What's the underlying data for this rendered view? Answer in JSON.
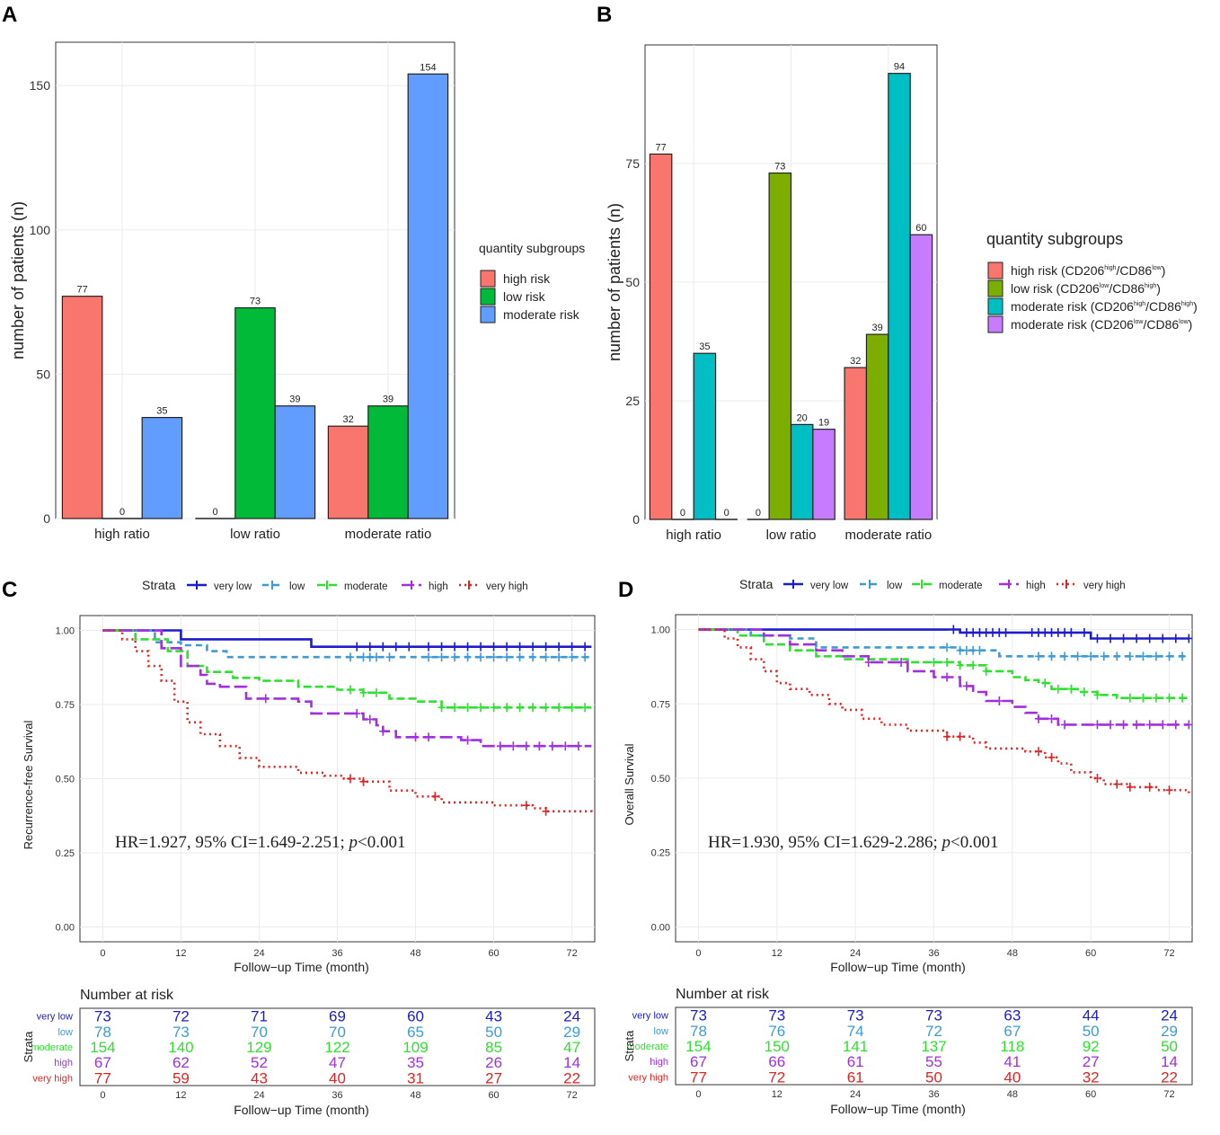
{
  "panels": {
    "a": "A",
    "b": "B",
    "c": "C",
    "d": "D"
  },
  "chart_data": [
    {
      "type": "bar",
      "panel": "A",
      "categories": [
        "high ratio",
        "low ratio",
        "moderate ratio"
      ],
      "series": [
        {
          "name": "high risk",
          "color": "#F8766D",
          "values": [
            77,
            0,
            32
          ]
        },
        {
          "name": "low risk",
          "color": "#00BA38",
          "values": [
            0,
            73,
            39
          ]
        },
        {
          "name": "moderate risk",
          "color": "#619CFF",
          "values": [
            35,
            39,
            154
          ]
        }
      ],
      "ylabel": "number of patients (n)",
      "yticks": [
        0,
        50,
        100,
        150
      ],
      "ylim": [
        0,
        165
      ],
      "legend_title": "quantity subgroups"
    },
    {
      "type": "bar",
      "panel": "B",
      "categories": [
        "high ratio",
        "low ratio",
        "moderate ratio"
      ],
      "series": [
        {
          "name": "high risk (CD206",
          "sup1": "high",
          "mid": "/CD86",
          "sup2": "low",
          "end": ")",
          "color": "#F8766D",
          "values": [
            77,
            0,
            32
          ]
        },
        {
          "name": "low risk (CD206",
          "sup1": "low",
          "mid": "/CD86",
          "sup2": "high",
          "end": ")",
          "color": "#7CAE00",
          "values": [
            0,
            73,
            39
          ]
        },
        {
          "name": "moderate risk (CD206",
          "sup1": "high",
          "mid": "/CD86",
          "sup2": "high",
          "end": ")",
          "color": "#00BFC4",
          "values": [
            35,
            20,
            94
          ]
        },
        {
          "name": "moderate risk (CD206",
          "sup1": "low",
          "mid": "/CD86",
          "sup2": "low",
          "end": ")",
          "color": "#C77CFF",
          "values": [
            0,
            19,
            60
          ]
        }
      ],
      "ylabel": "number of patients (n)",
      "yticks": [
        0,
        25,
        50,
        75
      ],
      "ylim": [
        0,
        100
      ],
      "legend_title": "quantity subgroups"
    },
    {
      "type": "line",
      "panel": "C",
      "ylabel": "Recurrence-free Survival",
      "xlabel": "Follow−up Time (month)",
      "xticks": [
        0,
        12,
        24,
        36,
        48,
        60,
        72
      ],
      "xlim": [
        -3.5,
        75.5
      ],
      "yticks": [
        "0.00",
        "0.25",
        "0.50",
        "0.75",
        "1.00"
      ],
      "ylim": [
        -0.05,
        1.05
      ],
      "legend_title": "Strata",
      "annotation": {
        "pre": "HR=1.927, 95% CI=1.649-2.251; ",
        "p": "p",
        "post": "<0.001"
      },
      "series": [
        {
          "name": "very low",
          "color": "#1C1CCC",
          "dash": "",
          "points": [
            [
              0,
              1
            ],
            [
              12,
              0.97
            ],
            [
              28,
              0.97
            ],
            [
              32,
              0.945
            ],
            [
              75,
              0.945
            ]
          ],
          "censor": [
            39,
            41,
            43,
            45,
            47,
            50,
            52,
            54,
            56,
            58,
            60,
            62,
            64,
            66,
            68,
            70,
            72,
            74
          ]
        },
        {
          "name": "low",
          "color": "#3C9BD6",
          "dash": "7,5",
          "points": [
            [
              0,
              1
            ],
            [
              8,
              0.96
            ],
            [
              12,
              0.95
            ],
            [
              16,
              0.93
            ],
            [
              19,
              0.91
            ],
            [
              75,
              0.91
            ]
          ],
          "censor": [
            38,
            40,
            41,
            42,
            44,
            50,
            52,
            54,
            56,
            58,
            60,
            62,
            64,
            66,
            68,
            70,
            72,
            74
          ]
        },
        {
          "name": "moderate",
          "color": "#2EE02E",
          "dash": "9,4",
          "points": [
            [
              0,
              1
            ],
            [
              5,
              0.97
            ],
            [
              10,
              0.93
            ],
            [
              13,
              0.88
            ],
            [
              16,
              0.86
            ],
            [
              20,
              0.84
            ],
            [
              24,
              0.83
            ],
            [
              30,
              0.81
            ],
            [
              36,
              0.8
            ],
            [
              40,
              0.79
            ],
            [
              44,
              0.77
            ],
            [
              48,
              0.76
            ],
            [
              52,
              0.74
            ],
            [
              75,
              0.74
            ]
          ],
          "censor": [
            38,
            40,
            42,
            52,
            54,
            56,
            58,
            60,
            62,
            64,
            66,
            68,
            70,
            72,
            74
          ]
        },
        {
          "name": "high",
          "color": "#A02FDE",
          "dash": "14,5",
          "points": [
            [
              0,
              1
            ],
            [
              6,
              1
            ],
            [
              9,
              0.94
            ],
            [
              12,
              0.88
            ],
            [
              15,
              0.85
            ],
            [
              16,
              0.82
            ],
            [
              18,
              0.81
            ],
            [
              22,
              0.77
            ],
            [
              30,
              0.76
            ],
            [
              32,
              0.72
            ],
            [
              40,
              0.7
            ],
            [
              42,
              0.68
            ],
            [
              43,
              0.66
            ],
            [
              45,
              0.64
            ],
            [
              55,
              0.63
            ],
            [
              58,
              0.61
            ],
            [
              75,
              0.61
            ]
          ],
          "censor": [
            25,
            39,
            41,
            43,
            48,
            50,
            56,
            61,
            63,
            65,
            67,
            69,
            71,
            73
          ]
        },
        {
          "name": "very high",
          "color": "#E02323",
          "dash": "2,4",
          "points": [
            [
              0,
              1
            ],
            [
              3,
              0.97
            ],
            [
              5,
              0.93
            ],
            [
              7,
              0.88
            ],
            [
              9,
              0.83
            ],
            [
              11,
              0.76
            ],
            [
              13,
              0.69
            ],
            [
              15,
              0.65
            ],
            [
              18,
              0.61
            ],
            [
              21,
              0.57
            ],
            [
              24,
              0.54
            ],
            [
              30,
              0.52
            ],
            [
              34,
              0.51
            ],
            [
              37,
              0.5
            ],
            [
              40,
              0.49
            ],
            [
              44,
              0.46
            ],
            [
              48,
              0.44
            ],
            [
              52,
              0.42
            ],
            [
              60,
              0.41
            ],
            [
              66,
              0.4
            ],
            [
              68,
              0.39
            ],
            [
              75,
              0.385
            ]
          ],
          "censor": [
            38,
            40,
            51,
            65,
            68
          ]
        }
      ],
      "risk_table": {
        "title": "Number at risk",
        "ylabel": "Strata",
        "xlabel": "Follow−up Time (month)",
        "rows": [
          {
            "label": "very low",
            "color": "#1C1CCC",
            "values": [
              "73",
              "72",
              "71",
              "69",
              "60",
              "43",
              "24"
            ]
          },
          {
            "label": "low",
            "color": "#3C9BD6",
            "values": [
              "78",
              "73",
              "70",
              "70",
              "65",
              "50",
              "29"
            ]
          },
          {
            "label": "moderate",
            "color": "#2EE02E",
            "values": [
              "154",
              "140",
              "129",
              "122",
              "109",
              "85",
              "47"
            ]
          },
          {
            "label": "high",
            "color": "#A02FDE",
            "values": [
              "67",
              "62",
              "52",
              "47",
              "35",
              "26",
              "14"
            ]
          },
          {
            "label": "very high",
            "color": "#E02323",
            "values": [
              "77",
              "59",
              "43",
              "40",
              "31",
              "27",
              "22"
            ]
          }
        ]
      }
    },
    {
      "type": "line",
      "panel": "D",
      "ylabel": "Overall Survival",
      "xlabel": "Follow−up Time (month)",
      "xticks": [
        0,
        12,
        24,
        36,
        48,
        60,
        72
      ],
      "xlim": [
        -3.5,
        75.5
      ],
      "yticks": [
        "0.00",
        "0.25",
        "0.50",
        "0.75",
        "1.00"
      ],
      "ylim": [
        -0.05,
        1.05
      ],
      "legend_title": "Strata",
      "annotation": {
        "pre": "HR=1.930, 95% CI=1.629-2.286; ",
        "p": "p",
        "post": "<0.001"
      },
      "series": [
        {
          "name": "very low",
          "color": "#1C1CCC",
          "dash": "",
          "points": [
            [
              0,
              1
            ],
            [
              38,
              1
            ],
            [
              40,
              0.99
            ],
            [
              58,
              0.99
            ],
            [
              60,
              0.97
            ],
            [
              75,
              0.97
            ]
          ],
          "censor": [
            39,
            41,
            42,
            43,
            44,
            45,
            46,
            47,
            51,
            52,
            53,
            54,
            55,
            56,
            57,
            59,
            61,
            63,
            65,
            67,
            69,
            71,
            73,
            75
          ]
        },
        {
          "name": "low",
          "color": "#3C9BD6",
          "dash": "7,5",
          "points": [
            [
              0,
              1
            ],
            [
              8,
              0.98
            ],
            [
              14,
              0.97
            ],
            [
              18,
              0.94
            ],
            [
              38,
              0.94
            ],
            [
              40,
              0.93
            ],
            [
              44,
              0.93
            ],
            [
              46,
              0.91
            ],
            [
              75,
              0.91
            ]
          ],
          "censor": [
            38,
            40,
            41,
            42,
            43,
            52,
            54,
            56,
            58,
            60,
            62,
            64,
            66,
            68,
            70,
            72,
            74
          ]
        },
        {
          "name": "moderate",
          "color": "#2EE02E",
          "dash": "9,4",
          "points": [
            [
              0,
              1
            ],
            [
              6,
              0.98
            ],
            [
              10,
              0.95
            ],
            [
              14,
              0.93
            ],
            [
              18,
              0.91
            ],
            [
              22,
              0.9
            ],
            [
              32,
              0.89
            ],
            [
              40,
              0.88
            ],
            [
              44,
              0.86
            ],
            [
              48,
              0.84
            ],
            [
              50,
              0.83
            ],
            [
              52,
              0.82
            ],
            [
              54,
              0.8
            ],
            [
              58,
              0.79
            ],
            [
              61,
              0.78
            ],
            [
              64,
              0.77
            ],
            [
              75,
              0.77
            ]
          ],
          "censor": [
            36,
            38,
            40,
            42,
            44,
            53,
            55,
            57,
            59,
            61,
            66,
            68,
            70,
            72,
            74
          ]
        },
        {
          "name": "high",
          "color": "#A02FDE",
          "dash": "14,5",
          "points": [
            [
              0,
              1
            ],
            [
              10,
              0.98
            ],
            [
              14,
              0.95
            ],
            [
              18,
              0.93
            ],
            [
              22,
              0.91
            ],
            [
              26,
              0.89
            ],
            [
              32,
              0.86
            ],
            [
              36,
              0.84
            ],
            [
              40,
              0.81
            ],
            [
              42,
              0.79
            ],
            [
              44,
              0.76
            ],
            [
              48,
              0.74
            ],
            [
              50,
              0.72
            ],
            [
              52,
              0.7
            ],
            [
              55,
              0.68
            ],
            [
              75,
              0.68
            ]
          ],
          "censor": [
            26,
            31,
            38,
            41,
            46,
            52,
            54,
            56,
            61,
            63,
            65,
            67,
            69,
            71,
            73,
            75
          ]
        },
        {
          "name": "very high",
          "color": "#E02323",
          "dash": "2,4",
          "points": [
            [
              0,
              1
            ],
            [
              4,
              0.97
            ],
            [
              6,
              0.94
            ],
            [
              8,
              0.9
            ],
            [
              10,
              0.86
            ],
            [
              12,
              0.82
            ],
            [
              14,
              0.8
            ],
            [
              17,
              0.78
            ],
            [
              20,
              0.75
            ],
            [
              22,
              0.73
            ],
            [
              25,
              0.7
            ],
            [
              28,
              0.68
            ],
            [
              32,
              0.66
            ],
            [
              38,
              0.64
            ],
            [
              42,
              0.62
            ],
            [
              44,
              0.6
            ],
            [
              50,
              0.59
            ],
            [
              53,
              0.57
            ],
            [
              55,
              0.55
            ],
            [
              57,
              0.52
            ],
            [
              60,
              0.5
            ],
            [
              62,
              0.48
            ],
            [
              66,
              0.47
            ],
            [
              70,
              0.46
            ],
            [
              75,
              0.45
            ]
          ],
          "censor": [
            38,
            40,
            52,
            54,
            61,
            64,
            66,
            69,
            72
          ]
        }
      ],
      "risk_table": {
        "title": "Number at risk",
        "ylabel": "Strata",
        "xlabel": "Follow−up Time (month)",
        "rows": [
          {
            "label": "very low",
            "color": "#1C1CCC",
            "values": [
              "73",
              "73",
              "73",
              "73",
              "63",
              "44",
              "24"
            ]
          },
          {
            "label": "low",
            "color": "#3C9BD6",
            "values": [
              "78",
              "76",
              "74",
              "72",
              "67",
              "50",
              "29"
            ]
          },
          {
            "label": "moderate",
            "color": "#2EE02E",
            "values": [
              "154",
              "150",
              "141",
              "137",
              "118",
              "92",
              "50"
            ]
          },
          {
            "label": "high",
            "color": "#A02FDE",
            "values": [
              "67",
              "66",
              "61",
              "55",
              "41",
              "27",
              "14"
            ]
          },
          {
            "label": "very high",
            "color": "#E02323",
            "values": [
              "77",
              "72",
              "61",
              "50",
              "40",
              "32",
              "22"
            ]
          }
        ]
      }
    }
  ]
}
